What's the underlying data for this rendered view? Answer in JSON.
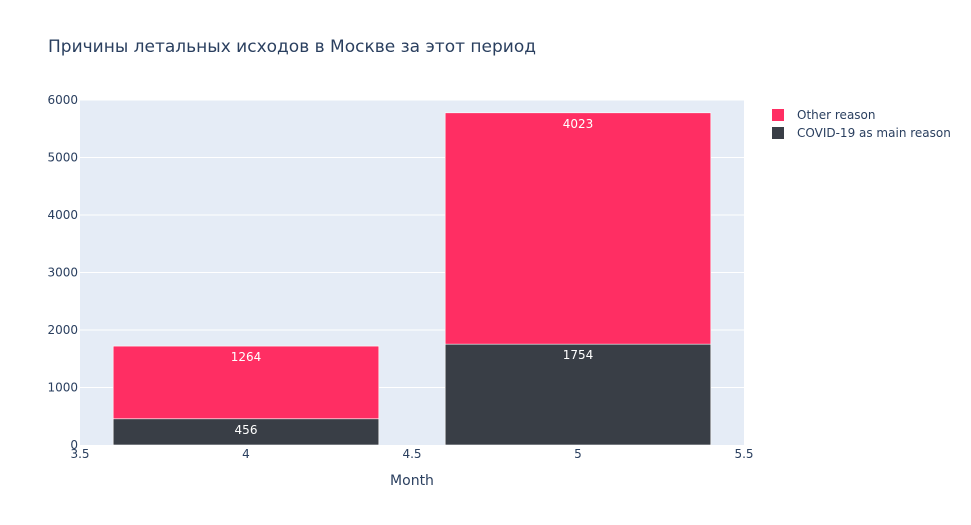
{
  "chart_data": {
    "type": "bar",
    "barmode": "stack",
    "title": "Причины летальных исходов в Москве за этот период",
    "xlabel": "Month",
    "ylabel": "",
    "x": [
      4,
      5
    ],
    "xlim": [
      3.5,
      5.5
    ],
    "ylim": [
      0,
      6000
    ],
    "x_ticks": [
      "3.5",
      "4",
      "4.5",
      "5",
      "5.5"
    ],
    "y_ticks": [
      "0",
      "1000",
      "2000",
      "3000",
      "4000",
      "5000",
      "6000"
    ],
    "grid": true,
    "legend_position": "top-right",
    "series": [
      {
        "name": "COVID-19 as main reason",
        "values": [
          456,
          1754
        ],
        "labels": [
          "456",
          "1754"
        ],
        "color": "#393e46"
      },
      {
        "name": "Other reason",
        "values": [
          1264,
          4023
        ],
        "labels": [
          "1264",
          "4023"
        ],
        "color": "#ff2e63"
      }
    ],
    "legend_order": [
      "Other reason",
      "COVID-19 as main reason"
    ],
    "colors": {
      "plot_background": "#e5ecf6",
      "grid": "#ffffff",
      "text": "#2a3f5f"
    }
  }
}
